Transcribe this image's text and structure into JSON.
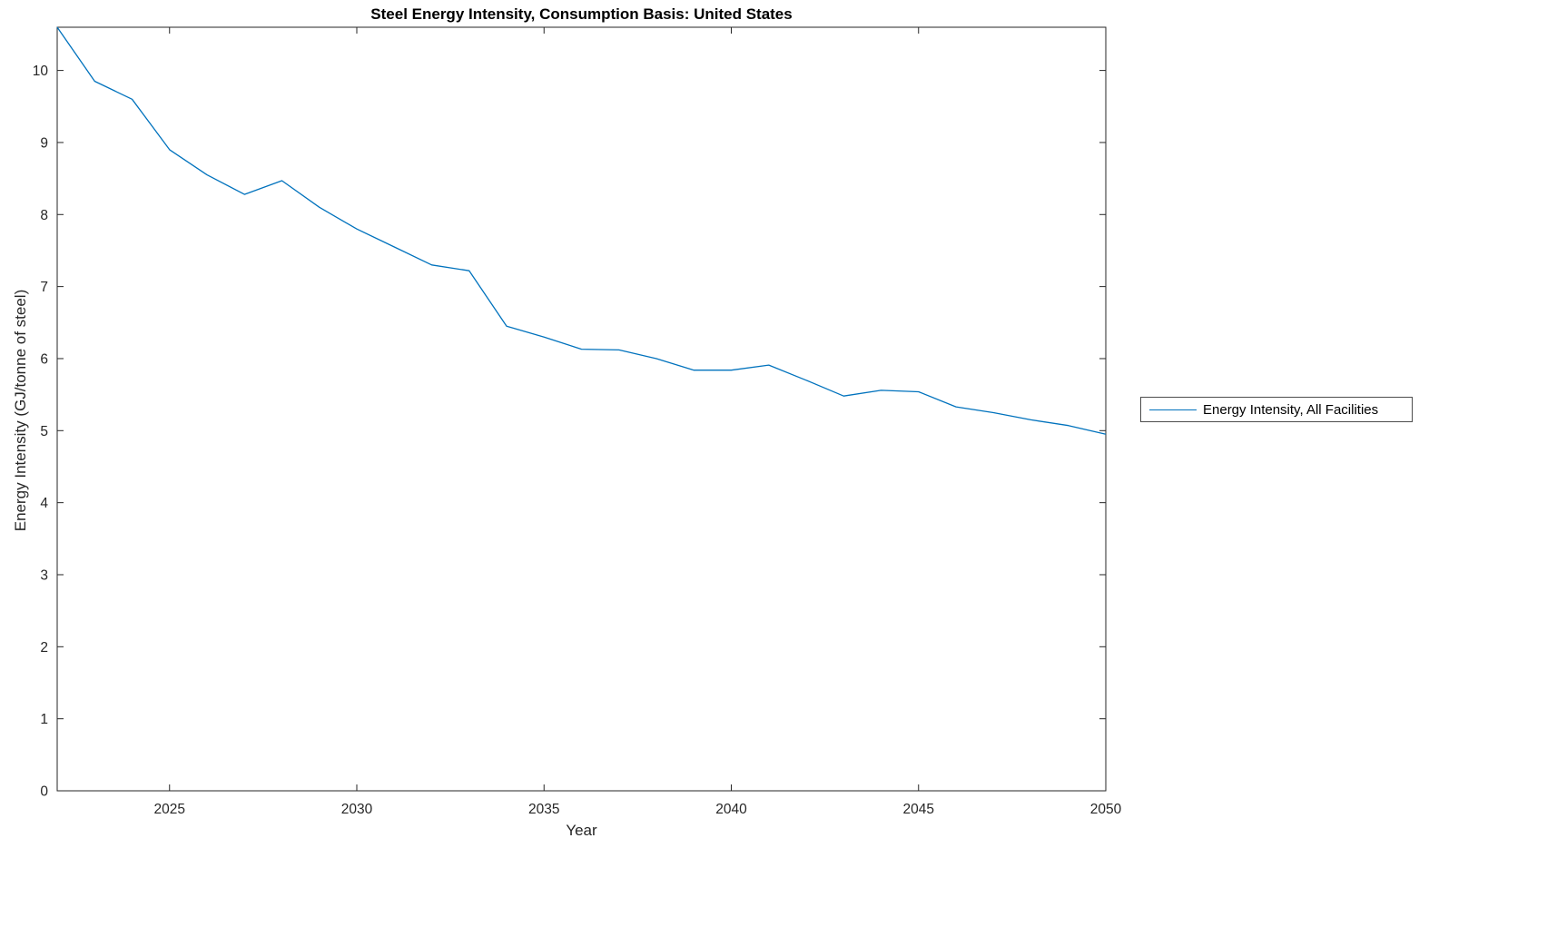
{
  "chart_data": {
    "type": "line",
    "title": "Steel Energy Intensity, Consumption Basis: United States",
    "xlabel": "Year",
    "ylabel": "Energy Intensity (GJ/tonne of steel)",
    "xlim": [
      2022,
      2050
    ],
    "ylim": [
      0,
      10.6
    ],
    "xticks": [
      2025,
      2030,
      2035,
      2040,
      2045,
      2050
    ],
    "yticks": [
      0,
      1,
      2,
      3,
      4,
      5,
      6,
      7,
      8,
      9,
      10
    ],
    "grid": false,
    "legend_position": "outside-right",
    "line_color": "#0072BD",
    "axis_color": "#262626",
    "series": [
      {
        "name": "Energy Intensity, All Facilities",
        "x": [
          2022,
          2023,
          2024,
          2025,
          2026,
          2027,
          2028,
          2029,
          2030,
          2031,
          2032,
          2033,
          2034,
          2035,
          2036,
          2037,
          2038,
          2039,
          2040,
          2041,
          2042,
          2043,
          2044,
          2045,
          2046,
          2047,
          2048,
          2049,
          2050
        ],
        "y": [
          10.6,
          9.85,
          9.6,
          8.9,
          8.55,
          8.28,
          8.47,
          8.1,
          7.8,
          7.55,
          7.3,
          7.22,
          6.45,
          6.3,
          6.13,
          6.12,
          6.0,
          5.84,
          5.84,
          5.91,
          5.7,
          5.48,
          5.56,
          5.54,
          5.33,
          5.25,
          5.15,
          5.07,
          4.95
        ]
      }
    ]
  },
  "legend": {
    "entries": [
      {
        "label": "Energy Intensity, All Facilities",
        "color": "#0072BD"
      }
    ]
  }
}
